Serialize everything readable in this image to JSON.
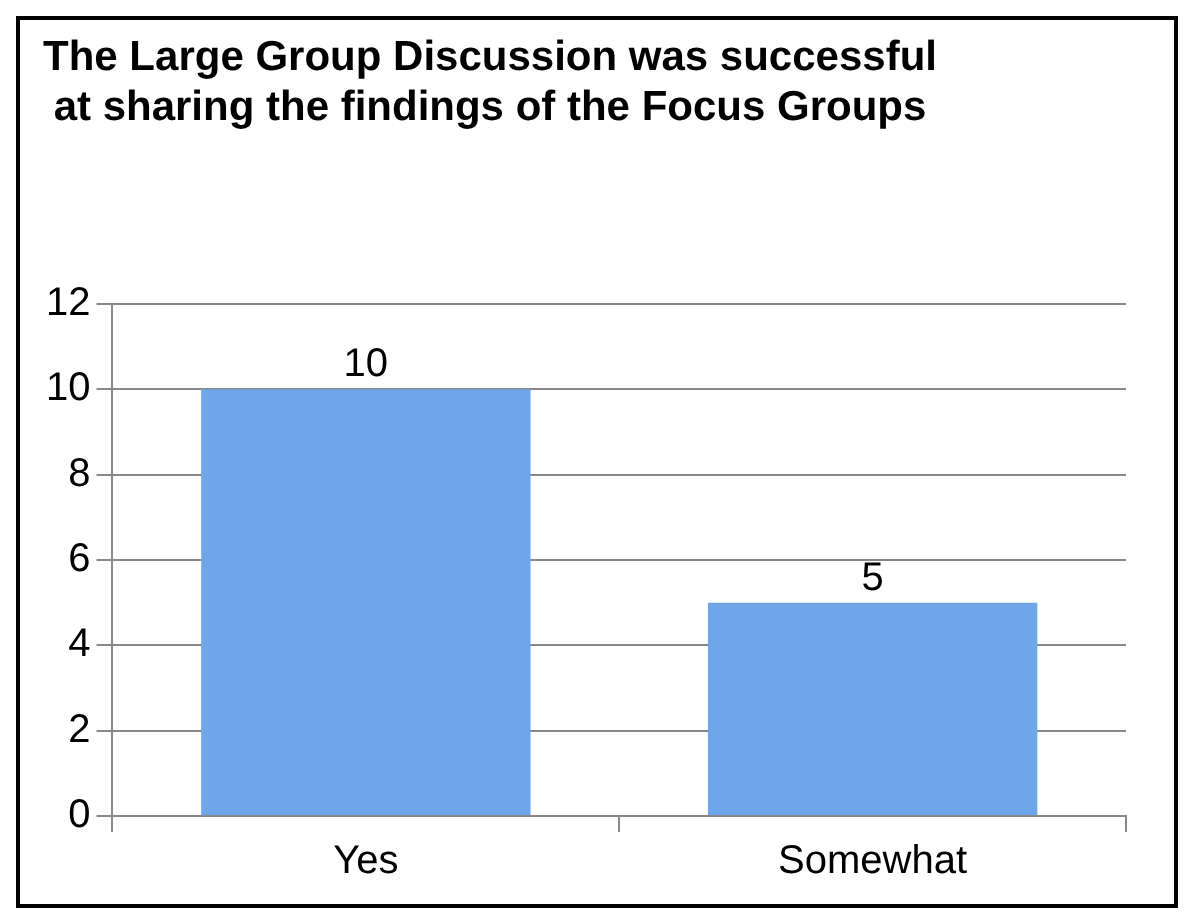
{
  "chart_data": {
    "type": "bar",
    "title": "The Large Group Discussion was successful at sharing the findings of the Focus Groups",
    "categories": [
      "Yes",
      "Somewhat"
    ],
    "values": [
      10,
      5
    ],
    "color": "#6fa6ea",
    "ylim": [
      0,
      12
    ],
    "yticks": [
      0,
      2,
      4,
      6,
      8,
      10,
      12
    ],
    "grid": "y",
    "data_labels": true,
    "legend": false
  }
}
